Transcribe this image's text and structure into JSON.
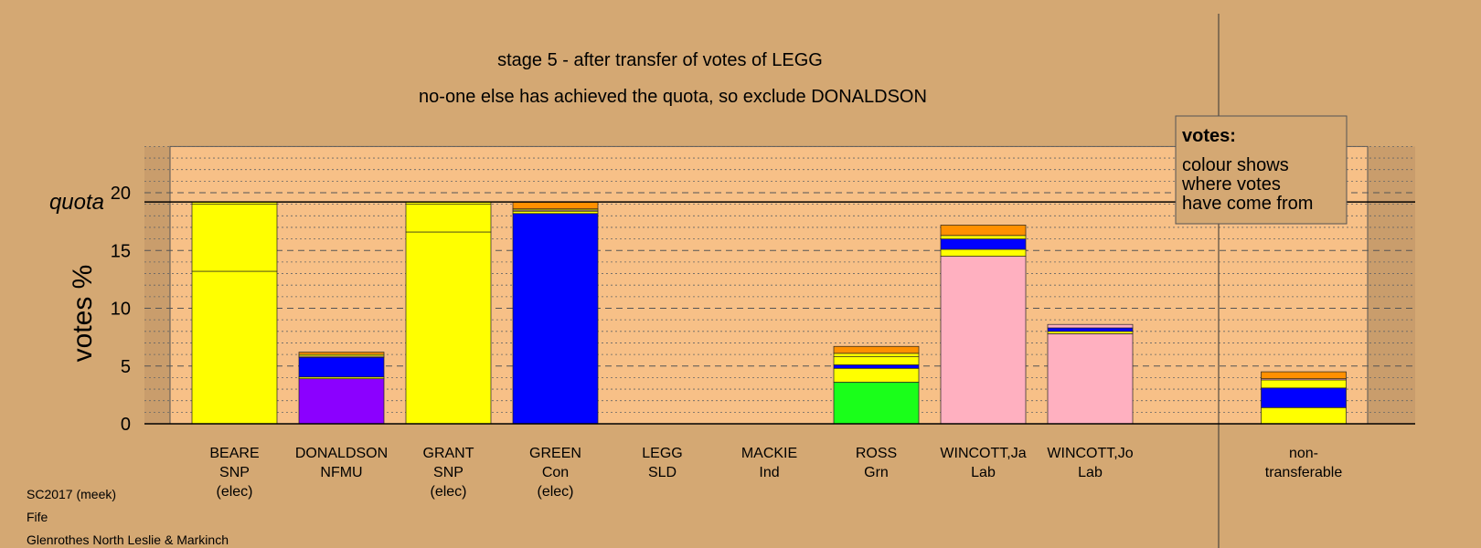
{
  "colors": {
    "background": "#d4a873",
    "plot_area": "#f7c087",
    "snp": "#ffff00",
    "nfmu": "#8b00ff",
    "con": "#0000ff",
    "grn": "#1aff1a",
    "lab": "#ffb0c0",
    "orange": "#ff9000"
  },
  "chart_data": {
    "type": "bar",
    "stacked": true,
    "title": "stage 5 - after transfer of votes of LEGG",
    "subtitle": "no-one else has achieved the quota, so exclude DONALDSON",
    "ylabel": "votes %",
    "ylim": [
      0,
      24
    ],
    "yticks": [
      0,
      5,
      10,
      15,
      20
    ],
    "quota": 19.2,
    "quota_label": "quota",
    "grid": true,
    "legend_placement": "top-right",
    "legend": {
      "title": "votes:",
      "lines": [
        "colour shows",
        "where votes",
        "have come from"
      ]
    },
    "categories": [
      {
        "lines": [
          "BEARE",
          "SNP",
          "(elec)"
        ]
      },
      {
        "lines": [
          "DONALDSON",
          "NFMU"
        ]
      },
      {
        "lines": [
          "GRANT",
          "SNP",
          "(elec)"
        ]
      },
      {
        "lines": [
          "GREEN",
          "Con",
          "(elec)"
        ]
      },
      {
        "lines": [
          "LEGG",
          "SLD"
        ]
      },
      {
        "lines": [
          "MACKIE",
          "Ind"
        ]
      },
      {
        "lines": [
          "ROSS",
          "Grn"
        ]
      },
      {
        "lines": [
          "WINCOTT,Ja",
          "Lab"
        ]
      },
      {
        "lines": [
          "WINCOTT,Jo",
          "Lab"
        ]
      },
      {
        "lines": [
          "non-",
          "transferable"
        ]
      }
    ],
    "stacks": [
      [
        {
          "v": 13.2,
          "c": "snp"
        },
        {
          "v": 5.8,
          "c": "snp"
        },
        {
          "v": 0.2,
          "c": "snp"
        }
      ],
      [
        {
          "v": 3.9,
          "c": "nfmu"
        },
        {
          "v": 0.15,
          "c": "snp"
        },
        {
          "v": 1.7,
          "c": "con"
        },
        {
          "v": 0.1,
          "c": "lab"
        },
        {
          "v": 0.15,
          "c": "snp"
        },
        {
          "v": 0.2,
          "c": "orange"
        }
      ],
      [
        {
          "v": 16.6,
          "c": "snp"
        },
        {
          "v": 2.4,
          "c": "snp"
        },
        {
          "v": 0.2,
          "c": "snp"
        }
      ],
      [
        {
          "v": 18.2,
          "c": "con"
        },
        {
          "v": 0.2,
          "c": "snp"
        },
        {
          "v": 0.1,
          "c": "lab"
        },
        {
          "v": 0.1,
          "c": "snp"
        },
        {
          "v": 0.6,
          "c": "orange"
        }
      ],
      [],
      [],
      [
        {
          "v": 3.6,
          "c": "grn"
        },
        {
          "v": 1.2,
          "c": "snp"
        },
        {
          "v": 0.3,
          "c": "con"
        },
        {
          "v": 0.7,
          "c": "snp"
        },
        {
          "v": 0.3,
          "c": "snp"
        },
        {
          "v": 0.6,
          "c": "orange"
        }
      ],
      [
        {
          "v": 14.5,
          "c": "lab"
        },
        {
          "v": 0.6,
          "c": "snp"
        },
        {
          "v": 0.9,
          "c": "con"
        },
        {
          "v": 0.3,
          "c": "snp"
        },
        {
          "v": 0.9,
          "c": "orange"
        }
      ],
      [
        {
          "v": 7.8,
          "c": "lab"
        },
        {
          "v": 0.2,
          "c": "snp"
        },
        {
          "v": 0.3,
          "c": "con"
        },
        {
          "v": 0.3,
          "c": "lab"
        }
      ],
      [
        {
          "v": 1.4,
          "c": "snp"
        },
        {
          "v": 1.7,
          "c": "con"
        },
        {
          "v": 0.7,
          "c": "snp"
        },
        {
          "v": 0.1,
          "c": "lab"
        },
        {
          "v": 0.6,
          "c": "orange"
        }
      ]
    ]
  },
  "footer": {
    "lines": [
      "SC2017 (meek)",
      "Fife",
      "Glenrothes North Leslie & Markinch"
    ]
  }
}
